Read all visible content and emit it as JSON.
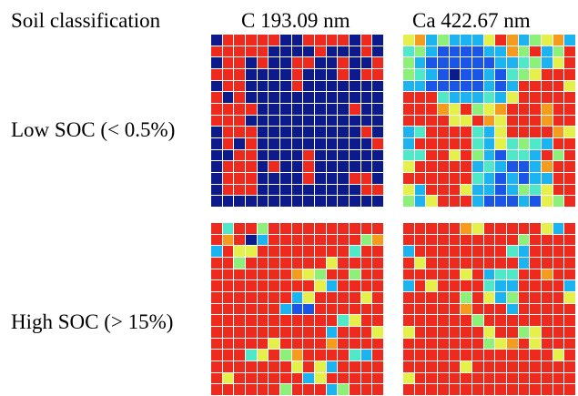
{
  "header": {
    "row_header": "Soil classification",
    "columns": [
      "C 193.09 nm",
      "Ca 422.67 nm"
    ]
  },
  "rows": [
    {
      "label": "Low SOC (< 0.5%)"
    },
    {
      "label": "High SOC (> 15%)"
    }
  ],
  "palette": {
    "B": "#0d1a8c",
    "b": "#1a55e8",
    "c": "#1cb4f0",
    "t": "#4fe8c8",
    "g": "#8cf07a",
    "y": "#e6f04a",
    "o": "#f59c1e",
    "r": "#ee2a1e",
    "d": "#c01818"
  },
  "maps": {
    "low_C": [
      "BrrrrrBBrrrrBrB",
      "rrrrrBBBBrBBBrB",
      "BrrBrBBrrBBrBBr",
      "rrrBBBBrBBBrBrr",
      "BrrBBBBrBBBBBBB",
      "rBrBBBBBBBBBBBB",
      "rrrrBBBBBBBBrBB",
      "rrrBBBBBBBBBBBB",
      "BrrrBBBBBBBBBrB",
      "BrBrBBBBBBBBBBr",
      "BBrrBBBBrBBBBBB",
      "BrrrBrBBrBBBBBB",
      "BrrrBBBBrBBBrrB",
      "BrrrBBBBBBBBBrr",
      "BBBBBBBBBBBBBBB"
    ],
    "low_Ca": [
      "yocgcccyrocgyoc",
      "tgcbbbbccogrcgr",
      "gcbbbbbbcctgcyr",
      "gtcbBbbcbtgyrrr",
      "ccbbbbbcbcrrrry",
      "rrrtccctcyrrrrr",
      "rrroyrgyorrrorr",
      "rrrryyroyrrrorr",
      "ctrrrrtcyrrrroy",
      "crrrrrtcytgtcrr",
      "ttrryrgcbttcrgr",
      "yrrrrrctcbbcorr",
      "rrrrrrtcbcbccrr",
      "ycrrryccbcgtyrr",
      "gcyrrrcbbbcbygr"
    ],
    "high_C": [
      "rtrrgrrrrrrrrrr",
      "rorBcrrrrrrrrgo",
      "cryyrrrrrrrrtrr",
      "rrgrrrrrrryrrrr",
      "rrrrrrroygrrgrr",
      "rrrrrrrrrycrrrr",
      "rrrrrrrcyrrrryr",
      "rrrrrrcbbrrrrrr",
      "rrrrrrrrrrrtyrr",
      "rrrrrrrrrrcrrry",
      "rrrrryrrrrorrrr",
      "rrrtyrgorrrrtcr",
      "rrrrrrryrycrrrr",
      "ryrrrrrrcyrrrrr",
      "rrrrrrgrrrcgrrr"
    ],
    "high_Ca": [
      "rrrrroyrrrrrycr",
      "rrrrrrrrrrgrrrr",
      "crrrrrrrrtcrrrr",
      "ryrrrrrrrrcrrrr",
      "rrrrryrcttrrorr",
      "cryrrrrtccrrrrc",
      "rrrrrgrycgrrrry",
      "rrrrrorrrcrrrrr",
      "rrrrrrgrrrrrrrr",
      "yrrrrrryrrgyrrr",
      "rrrrrrrgyoryrrr",
      "rrrrrrrrrrrrryr",
      "rrrrryrrrrrrrrr",
      "yrrrrrrrrrrrrrr",
      "rrrrrrrrrrrrrrr"
    ]
  }
}
